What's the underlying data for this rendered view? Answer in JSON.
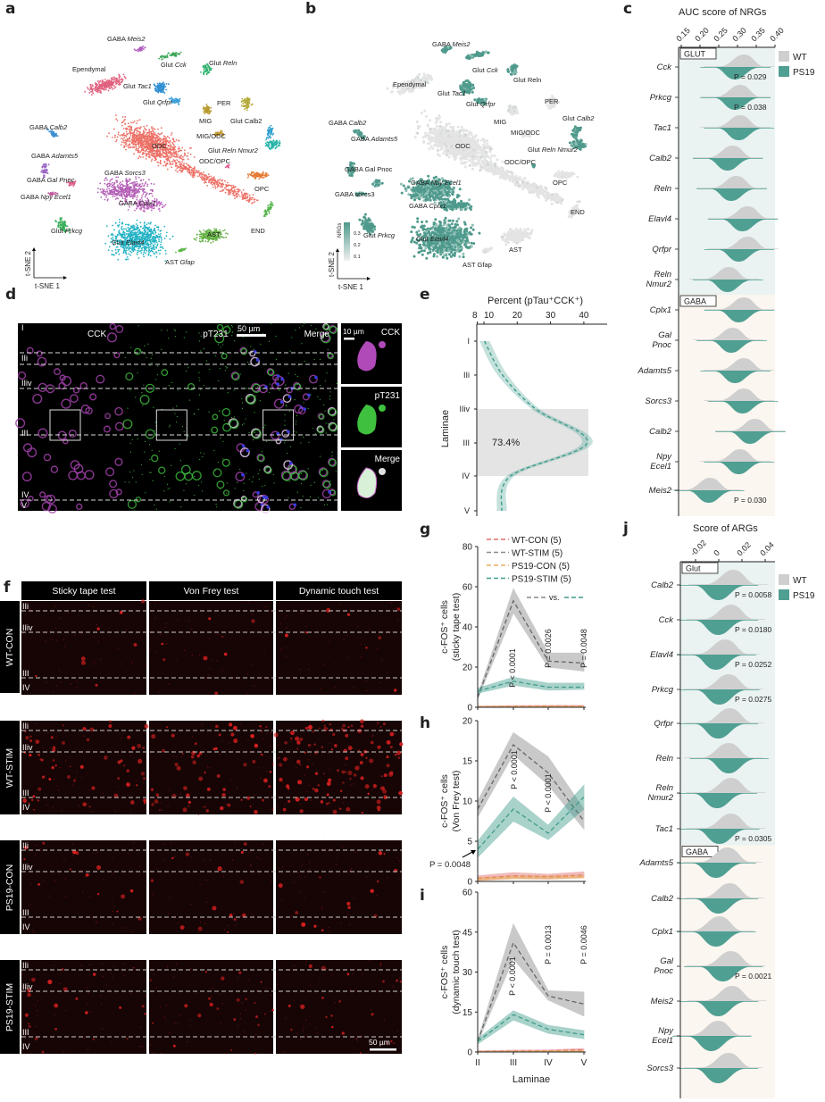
{
  "panel_letters": {
    "a": "a",
    "b": "b",
    "c": "c",
    "d": "d",
    "e": "e",
    "f": "f",
    "g": "g",
    "h": "h",
    "i": "i",
    "j": "j"
  },
  "tsne_a": {
    "axis_x": "t-SNE 1",
    "axis_y": "t-SNE 2",
    "clusters": [
      {
        "prefix": "GABA",
        "gene": "Meis2",
        "color": "#b25fc2"
      },
      {
        "prefix": "Glut",
        "gene": "Cck",
        "color": "#3da657"
      },
      {
        "prefix": "Glut",
        "gene": "Reln",
        "color": "#2fb36e"
      },
      {
        "prefix": "Ependymal",
        "gene": "",
        "color": "#e0607e"
      },
      {
        "prefix": "Glut",
        "gene": "Tac1",
        "color": "#2f8fd2"
      },
      {
        "prefix": "Glut",
        "gene": "Qrfpr",
        "color": "#3aa0d8"
      },
      {
        "prefix": "PER",
        "gene": "",
        "color": "#b3a93a"
      },
      {
        "prefix": "MIG",
        "gene": "",
        "color": "#b89a2e"
      },
      {
        "prefix": "Glut Calb2",
        "gene": "",
        "color": "#2f9fd0"
      },
      {
        "prefix": "MIG/ODC",
        "gene": "",
        "color": "#c29a35"
      },
      {
        "prefix": "ODC",
        "gene": "",
        "color": "#ec7066"
      },
      {
        "prefix": "Glut",
        "gene": "Reln Nmur2",
        "color": "#25b3a8"
      },
      {
        "prefix": "ODC/OPC",
        "gene": "",
        "color": "#e24f8a"
      },
      {
        "prefix": "OPC",
        "gene": "",
        "color": "#e57a34"
      },
      {
        "prefix": "GABA",
        "gene": "Calb2",
        "color": "#3a8fd0"
      },
      {
        "prefix": "GABA",
        "gene": "Adamts5",
        "color": "#9b64c4"
      },
      {
        "prefix": "GABA",
        "gene": "Gal Pnoc",
        "color": "#e05a8a"
      },
      {
        "prefix": "GABA",
        "gene": "Npy Ecel1",
        "color": "#c2549a"
      },
      {
        "prefix": "GABA",
        "gene": "Sorcs3",
        "color": "#b460b6"
      },
      {
        "prefix": "GABA",
        "gene": "Cplx1",
        "color": "#c06ac0"
      },
      {
        "prefix": "Glut",
        "gene": "Prkcg",
        "color": "#3aae5a"
      },
      {
        "prefix": "Glut",
        "gene": "Elavl4",
        "color": "#22b2c4"
      },
      {
        "prefix": "AST",
        "gene": "",
        "color": "#63b043"
      },
      {
        "prefix": "AST",
        "gene": "Gfap",
        "color": "#5db84a"
      },
      {
        "prefix": "END",
        "gene": "",
        "color": "#52b448"
      }
    ]
  },
  "tsne_b": {
    "axis_x": "t-SNE 1",
    "axis_y": "t-SNE 2",
    "legend_title": "NRGs",
    "legend_ticks": [
      "0.3",
      "0.2",
      "0.1"
    ],
    "colors": {
      "low": "#e4e4e4",
      "high": "#4f9a8c"
    },
    "clusters": [
      {
        "prefix": "GABA",
        "gene": "Meis2",
        "nrg": "high"
      },
      {
        "prefix": "Glut",
        "gene": "Cck",
        "nrg": "high"
      },
      {
        "prefix": "Glut Reln",
        "gene": "",
        "nrg": "high"
      },
      {
        "prefix": "Ependymal",
        "gene": "",
        "nrg": "low"
      },
      {
        "prefix": "Glut",
        "gene": "Tac1",
        "nrg": "high"
      },
      {
        "prefix": "Glut",
        "gene": "Qrfpr",
        "nrg": "high"
      },
      {
        "prefix": "PER",
        "gene": "",
        "nrg": "low"
      },
      {
        "prefix": "MIG",
        "gene": "",
        "nrg": "low"
      },
      {
        "prefix": "Glut",
        "gene": "Calb2",
        "nrg": "high"
      },
      {
        "prefix": "MIG/ODC",
        "gene": "",
        "nrg": "low"
      },
      {
        "prefix": "ODC",
        "gene": "",
        "nrg": "low"
      },
      {
        "prefix": "Glut",
        "gene": "Reln Nmur2",
        "nrg": "high"
      },
      {
        "prefix": "ODC/OPC",
        "gene": "",
        "nrg": "high"
      },
      {
        "prefix": "OPC",
        "gene": "",
        "nrg": "low"
      },
      {
        "prefix": "GABA",
        "gene": "Calb2",
        "nrg": "high"
      },
      {
        "prefix": "GABA",
        "gene": "Adamts5",
        "nrg": "high"
      },
      {
        "prefix": "GABA Gal Pnoc",
        "gene": "",
        "nrg": "high"
      },
      {
        "prefix": "GABA",
        "gene": "Npy Ecel1",
        "nrg": "high"
      },
      {
        "prefix": "GABA sorcs3",
        "gene": "",
        "nrg": "high"
      },
      {
        "prefix": "GABA",
        "gene": "Cplx1",
        "nrg": "high"
      },
      {
        "prefix": "Glut",
        "gene": "Prkcg",
        "nrg": "high"
      },
      {
        "prefix": "Glut",
        "gene": "Elavl4",
        "nrg": "high"
      },
      {
        "prefix": "AST",
        "gene": "",
        "nrg": "low"
      },
      {
        "prefix": "AST Gfap",
        "gene": "",
        "nrg": "low"
      },
      {
        "prefix": "END",
        "gene": "",
        "nrg": "low"
      }
    ]
  },
  "panel_c": {
    "title": "AUC score of NRGs",
    "ticks": [
      0.15,
      0.2,
      0.25,
      0.3,
      0.35,
      0.4
    ],
    "tick_labels": [
      "0.15",
      "0.20",
      "0.25",
      "0.30",
      "0.35",
      "0.40"
    ],
    "legend": [
      {
        "label": "WT",
        "color": "#cfcfcf"
      },
      {
        "label": "PS19",
        "color": "#4f9f92"
      }
    ],
    "groups": [
      {
        "label": "GLUT",
        "bg": "#eaf3f2",
        "rows": [
          {
            "gene": "Cck",
            "wt": 0.31,
            "ps19": 0.3,
            "p": "P = 0.029"
          },
          {
            "gene": "Prkcg",
            "wt": 0.3,
            "ps19": 0.3,
            "p": "P = 0.038"
          },
          {
            "gene": "Tac1",
            "wt": 0.3,
            "ps19": 0.31,
            "p": ""
          },
          {
            "gene": "Calb2",
            "wt": 0.28,
            "ps19": 0.28,
            "p": ""
          },
          {
            "gene": "Reln",
            "wt": 0.29,
            "ps19": 0.29,
            "p": ""
          },
          {
            "gene": "Elavl4",
            "wt": 0.32,
            "ps19": 0.32,
            "p": ""
          },
          {
            "gene": "Qrfpr",
            "wt": 0.32,
            "ps19": 0.31,
            "p": ""
          },
          {
            "gene": "Reln Nmur2",
            "wt": 0.27,
            "ps19": 0.28,
            "p": ""
          }
        ]
      },
      {
        "label": "GABA",
        "bg": "#fbf6f0",
        "rows": [
          {
            "gene": "Cplx1",
            "wt": 0.31,
            "ps19": 0.31,
            "p": ""
          },
          {
            "gene": "Gal Pnoc",
            "wt": 0.28,
            "ps19": 0.29,
            "p": ""
          },
          {
            "gene": "Adamts5",
            "wt": 0.31,
            "ps19": 0.3,
            "p": ""
          },
          {
            "gene": "Sorcs3",
            "wt": 0.31,
            "ps19": 0.32,
            "p": ""
          },
          {
            "gene": "Calb2",
            "wt": 0.34,
            "ps19": 0.34,
            "p": ""
          },
          {
            "gene": "Npy Ecel1",
            "wt": 0.3,
            "ps19": 0.31,
            "p": ""
          },
          {
            "gene": "Meis2",
            "wt": 0.22,
            "ps19": 0.23,
            "p": "P = 0.030"
          }
        ]
      }
    ]
  },
  "panel_j": {
    "title": "Score of ARGs",
    "ticks": [
      -0.02,
      0,
      0.02,
      0.04
    ],
    "tick_labels": [
      "-0.02",
      "0",
      "0.02",
      "0.04"
    ],
    "legend": [
      {
        "label": "WT",
        "color": "#cfcfcf"
      },
      {
        "label": "PS19",
        "color": "#4f9f92"
      }
    ],
    "groups": [
      {
        "label": "Glut",
        "bg": "#eaf3f2",
        "rows": [
          {
            "gene": "Calb2",
            "wt": 0.01,
            "ps19": 0.002,
            "p": "P = 0.0058"
          },
          {
            "gene": "Cck",
            "wt": 0.008,
            "ps19": 0.002,
            "p": "P = 0.0180"
          },
          {
            "gene": "Elavl4",
            "wt": 0.003,
            "ps19": 0.0,
            "p": "P = 0.0252"
          },
          {
            "gene": "Prkcg",
            "wt": 0.006,
            "ps19": 0.003,
            "p": "P = 0.0275"
          },
          {
            "gene": "Qrfpr",
            "wt": 0.007,
            "ps19": 0.002,
            "p": ""
          },
          {
            "gene": "Reln",
            "wt": 0.006,
            "ps19": 0.011,
            "p": ""
          },
          {
            "gene": "Reln Nmur2",
            "wt": 0.008,
            "ps19": 0.001,
            "p": ""
          },
          {
            "gene": "Tac1",
            "wt": 0.008,
            "ps19": 0.003,
            "p": "P = 0.0305"
          }
        ]
      },
      {
        "label": "GABA",
        "bg": "#fbf6f0",
        "rows": [
          {
            "gene": "Adamts5",
            "wt": 0.005,
            "ps19": 0.0,
            "p": ""
          },
          {
            "gene": "Calb2",
            "wt": 0.007,
            "ps19": 0.002,
            "p": ""
          },
          {
            "gene": "Cplx1",
            "wt": -0.002,
            "ps19": 0.0,
            "p": ""
          },
          {
            "gene": "Gal Pnoc",
            "wt": 0.008,
            "ps19": 0.006,
            "p": "P = 0.0021"
          },
          {
            "gene": "Meis2",
            "wt": 0.009,
            "ps19": 0.002,
            "p": ""
          },
          {
            "gene": "Npy Ecel1",
            "wt": -0.003,
            "ps19": -0.004,
            "p": ""
          },
          {
            "gene": "Sorcs3",
            "wt": 0.006,
            "ps19": 0.002,
            "p": ""
          }
        ]
      }
    ]
  },
  "panel_d": {
    "channels": [
      "CCK",
      "pT231",
      "Merge"
    ],
    "scale_bar": "50 µm",
    "inset_scale_bar": "10 µm",
    "insets": [
      "CCK",
      "pT231",
      "Merge"
    ],
    "laminae": [
      "I",
      "IIi",
      "IIiv",
      "III",
      "IV",
      "V"
    ]
  },
  "panel_f": {
    "columns": [
      "Sticky tape test",
      "Von Frey test",
      "Dynamic touch test"
    ],
    "rows": [
      "WT-CON",
      "WT-STIM",
      "PS19-CON",
      "PS19-STIM"
    ],
    "laminae": [
      "IIi",
      "IIiv",
      "III",
      "IV"
    ],
    "scale_bar": "50 µm"
  },
  "chart_data": [
    {
      "panel": "e",
      "type": "line",
      "xlabel": "Percent (pTau⁺CCK⁺)",
      "ylabel": "Laminae",
      "categories": [
        "I",
        "IIi",
        "IIiv",
        "III",
        "IV",
        "V"
      ],
      "values": [
        10.2,
        15.6,
        25.5,
        41.0,
        18.0,
        15.3
      ],
      "band": [
        1.5,
        1.5,
        1.2,
        1.6,
        1.2,
        1.5
      ],
      "x_ticks": [
        "8",
        "10",
        "20",
        "30",
        "40"
      ],
      "xlim": [
        8,
        43
      ],
      "shaded_range": [
        "IIiv",
        "IV"
      ],
      "annotation": "73.4%",
      "color": "#3f9c8c"
    },
    {
      "panel": "g",
      "type": "line",
      "ylabel": "c-FOS⁺ cells (sticky tape test)",
      "categories": [
        "II",
        "III",
        "IV",
        "V"
      ],
      "ylim": [
        0,
        80
      ],
      "y_ticks": [
        "0",
        "20",
        "40",
        "60",
        "80"
      ],
      "series": [
        {
          "name": "WT-CON (5)",
          "color": "#e06b6b",
          "mean": [
            0.3,
            0.5,
            0.6,
            0.6
          ],
          "lower": [
            0.1,
            0.2,
            0.3,
            0.3
          ],
          "upper": [
            0.6,
            0.9,
            1.0,
            1.0
          ]
        },
        {
          "name": "WT-STIM (5)",
          "color": "#8a8a8a",
          "mean": [
            5,
            53,
            23,
            22
          ],
          "lower": [
            4,
            47,
            20,
            18
          ],
          "upper": [
            6,
            59,
            27,
            27
          ]
        },
        {
          "name": "PS19-CON (5)",
          "color": "#e8ad5f",
          "mean": [
            0.2,
            0.3,
            0.4,
            0.4
          ],
          "lower": [
            0.1,
            0.1,
            0.2,
            0.2
          ],
          "upper": [
            0.4,
            0.6,
            0.7,
            0.7
          ]
        },
        {
          "name": "PS19-STIM (5)",
          "color": "#3f9c8c",
          "mean": [
            8,
            13,
            10,
            10
          ],
          "lower": [
            7,
            11,
            8.5,
            9
          ],
          "upper": [
            9.5,
            15,
            12,
            12
          ]
        }
      ],
      "comparison": "vs.",
      "annotations": [
        "P < 0.0001",
        "P = 0.0026",
        "P = 0.0048"
      ]
    },
    {
      "panel": "h",
      "type": "line",
      "ylabel": "c-FOS⁺ cells (Von Frey test)",
      "categories": [
        "II",
        "III",
        "IV",
        "V"
      ],
      "ylim": [
        0,
        20
      ],
      "y_ticks": [
        "0",
        "5",
        "10",
        "15",
        "20"
      ],
      "series": [
        {
          "name": "WT-CON (5)",
          "color": "#e06b6b",
          "mean": [
            0.4,
            0.7,
            0.6,
            0.8
          ],
          "lower": [
            0.1,
            0.4,
            0.3,
            0.5
          ],
          "upper": [
            0.7,
            1.1,
            0.9,
            1.2
          ]
        },
        {
          "name": "WT-STIM (5)",
          "color": "#8a8a8a",
          "mean": [
            9,
            17,
            13.5,
            7.5
          ],
          "lower": [
            8,
            15.8,
            12,
            6.5
          ],
          "upper": [
            10,
            18.5,
            15.5,
            9
          ]
        },
        {
          "name": "PS19-CON (5)",
          "color": "#e8ad5f",
          "mean": [
            0.3,
            0.5,
            0.5,
            0.6
          ],
          "lower": [
            0.1,
            0.3,
            0.3,
            0.4
          ],
          "upper": [
            0.5,
            0.7,
            0.7,
            0.8
          ]
        },
        {
          "name": "PS19-STIM (5)",
          "color": "#3f9c8c",
          "mean": [
            4,
            9,
            6,
            10.5
          ],
          "lower": [
            3,
            7.5,
            5.2,
            9
          ],
          "upper": [
            5,
            10.5,
            7,
            12
          ]
        }
      ],
      "annotations": [
        "P < 0.0001",
        "P < 0.0001",
        "P = 0.0048"
      ]
    },
    {
      "panel": "i",
      "type": "line",
      "xlabel": "Laminae",
      "ylabel": "c-FOS⁺ cells (dynamic touch test)",
      "categories": [
        "II",
        "III",
        "IV",
        "V"
      ],
      "ylim": [
        0,
        60
      ],
      "y_ticks": [
        "0",
        "15",
        "30",
        "45",
        "60"
      ],
      "series": [
        {
          "name": "WT-CON (5)",
          "color": "#e06b6b",
          "mean": [
            0.2,
            0.4,
            0.5,
            0.8
          ],
          "lower": [
            0.1,
            0.2,
            0.3,
            0.4
          ],
          "upper": [
            0.4,
            0.7,
            0.8,
            1.3
          ]
        },
        {
          "name": "WT-STIM (5)",
          "color": "#8a8a8a",
          "mean": [
            4,
            41,
            21,
            18
          ],
          "lower": [
            3.5,
            35,
            19.5,
            13.5
          ],
          "upper": [
            4.5,
            48,
            23,
            22.5
          ]
        },
        {
          "name": "PS19-CON (5)",
          "color": "#e8ad5f",
          "mean": [
            0.1,
            0.2,
            0.3,
            0.4
          ],
          "lower": [
            0.05,
            0.1,
            0.2,
            0.2
          ],
          "upper": [
            0.2,
            0.4,
            0.5,
            0.6
          ]
        },
        {
          "name": "PS19-STIM (5)",
          "color": "#3f9c8c",
          "mean": [
            4,
            14,
            8.5,
            6.5
          ],
          "lower": [
            3,
            12,
            7,
            5
          ],
          "upper": [
            5,
            15.5,
            10,
            8
          ]
        }
      ],
      "annotations": [
        "P < 0.0001",
        "P = 0.0013",
        "P = 0.0046"
      ]
    }
  ]
}
